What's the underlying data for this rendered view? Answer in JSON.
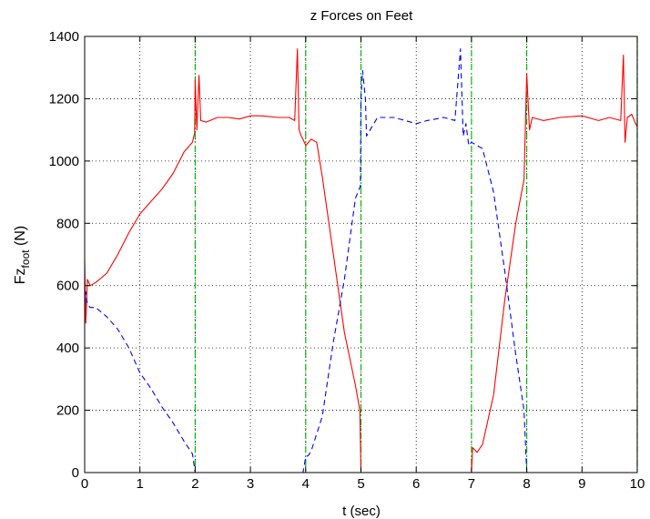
{
  "chart_data": {
    "type": "line",
    "title": "z Forces on Feet",
    "xlabel": "t (sec)",
    "ylabel_main": "Fz",
    "ylabel_sub": "foot",
    "ylabel_tail": " (N)",
    "xlim": [
      0,
      10
    ],
    "ylim": [
      0,
      1400
    ],
    "xticks": [
      0,
      1,
      2,
      3,
      4,
      5,
      6,
      7,
      8,
      9,
      10
    ],
    "yticks": [
      0,
      200,
      400,
      600,
      800,
      1000,
      1200,
      1400
    ],
    "grid": true,
    "colors": {
      "solid": "#ff0000",
      "dashed": "#0000ff",
      "phase": "#00bb00"
    },
    "phase_lines_x": [
      2,
      4,
      5,
      7,
      8,
      10
    ],
    "series": [
      {
        "style": "solid",
        "color": "#ff0000",
        "points": [
          [
            0.0,
            680
          ],
          [
            0.02,
            480
          ],
          [
            0.05,
            620
          ],
          [
            0.1,
            600
          ],
          [
            0.2,
            610
          ],
          [
            0.4,
            640
          ],
          [
            0.6,
            700
          ],
          [
            0.8,
            770
          ],
          [
            1.0,
            830
          ],
          [
            1.2,
            870
          ],
          [
            1.4,
            910
          ],
          [
            1.6,
            960
          ],
          [
            1.8,
            1030
          ],
          [
            1.95,
            1060
          ],
          [
            1.99,
            1090
          ],
          [
            2.0,
            1260
          ],
          [
            2.03,
            1100
          ],
          [
            2.07,
            1275
          ],
          [
            2.1,
            1130
          ],
          [
            2.2,
            1125
          ],
          [
            2.4,
            1140
          ],
          [
            2.6,
            1140
          ],
          [
            2.8,
            1135
          ],
          [
            3.0,
            1145
          ],
          [
            3.2,
            1145
          ],
          [
            3.5,
            1140
          ],
          [
            3.7,
            1140
          ],
          [
            3.8,
            1130
          ],
          [
            3.85,
            1360
          ],
          [
            3.88,
            1100
          ],
          [
            3.92,
            1080
          ],
          [
            3.95,
            1070
          ],
          [
            4.0,
            1050
          ],
          [
            4.1,
            1070
          ],
          [
            4.2,
            1060
          ],
          [
            4.3,
            950
          ],
          [
            4.5,
            700
          ],
          [
            4.7,
            450
          ],
          [
            4.9,
            280
          ],
          [
            4.98,
            200
          ],
          [
            5.0,
            0
          ],
          [
            6.0,
            0
          ],
          [
            7.0,
            0
          ],
          [
            7.02,
            80
          ],
          [
            7.1,
            65
          ],
          [
            7.2,
            90
          ],
          [
            7.4,
            250
          ],
          [
            7.6,
            550
          ],
          [
            7.8,
            800
          ],
          [
            7.95,
            940
          ],
          [
            8.0,
            1280
          ],
          [
            8.05,
            1100
          ],
          [
            8.1,
            1140
          ],
          [
            8.3,
            1130
          ],
          [
            8.6,
            1140
          ],
          [
            9.0,
            1145
          ],
          [
            9.3,
            1130
          ],
          [
            9.5,
            1140
          ],
          [
            9.7,
            1130
          ],
          [
            9.75,
            1340
          ],
          [
            9.78,
            1060
          ],
          [
            9.82,
            1140
          ],
          [
            9.9,
            1150
          ],
          [
            9.97,
            1120
          ],
          [
            10.0,
            1110
          ]
        ]
      },
      {
        "style": "dashed",
        "color": "#0000ff",
        "points": [
          [
            0.0,
            540
          ],
          [
            0.02,
            580
          ],
          [
            0.05,
            540
          ],
          [
            0.1,
            530
          ],
          [
            0.2,
            530
          ],
          [
            0.4,
            500
          ],
          [
            0.6,
            460
          ],
          [
            0.8,
            400
          ],
          [
            1.0,
            320
          ],
          [
            1.2,
            270
          ],
          [
            1.4,
            210
          ],
          [
            1.6,
            160
          ],
          [
            1.8,
            100
          ],
          [
            1.95,
            60
          ],
          [
            2.0,
            0
          ],
          [
            3.0,
            0
          ],
          [
            3.95,
            0
          ],
          [
            4.0,
            50
          ],
          [
            4.05,
            55
          ],
          [
            4.1,
            70
          ],
          [
            4.3,
            180
          ],
          [
            4.5,
            420
          ],
          [
            4.7,
            620
          ],
          [
            4.9,
            880
          ],
          [
            4.99,
            920
          ],
          [
            5.0,
            1200
          ],
          [
            5.03,
            1290
          ],
          [
            5.08,
            1200
          ],
          [
            5.1,
            1080
          ],
          [
            5.2,
            1110
          ],
          [
            5.3,
            1140
          ],
          [
            5.6,
            1140
          ],
          [
            5.8,
            1130
          ],
          [
            6.0,
            1120
          ],
          [
            6.2,
            1130
          ],
          [
            6.5,
            1140
          ],
          [
            6.7,
            1130
          ],
          [
            6.8,
            1360
          ],
          [
            6.85,
            1080
          ],
          [
            6.9,
            1120
          ],
          [
            6.95,
            1050
          ],
          [
            7.0,
            1060
          ],
          [
            7.2,
            1040
          ],
          [
            7.4,
            900
          ],
          [
            7.6,
            650
          ],
          [
            7.8,
            380
          ],
          [
            7.95,
            200
          ],
          [
            8.0,
            0
          ],
          [
            10.0,
            0
          ]
        ]
      }
    ]
  }
}
